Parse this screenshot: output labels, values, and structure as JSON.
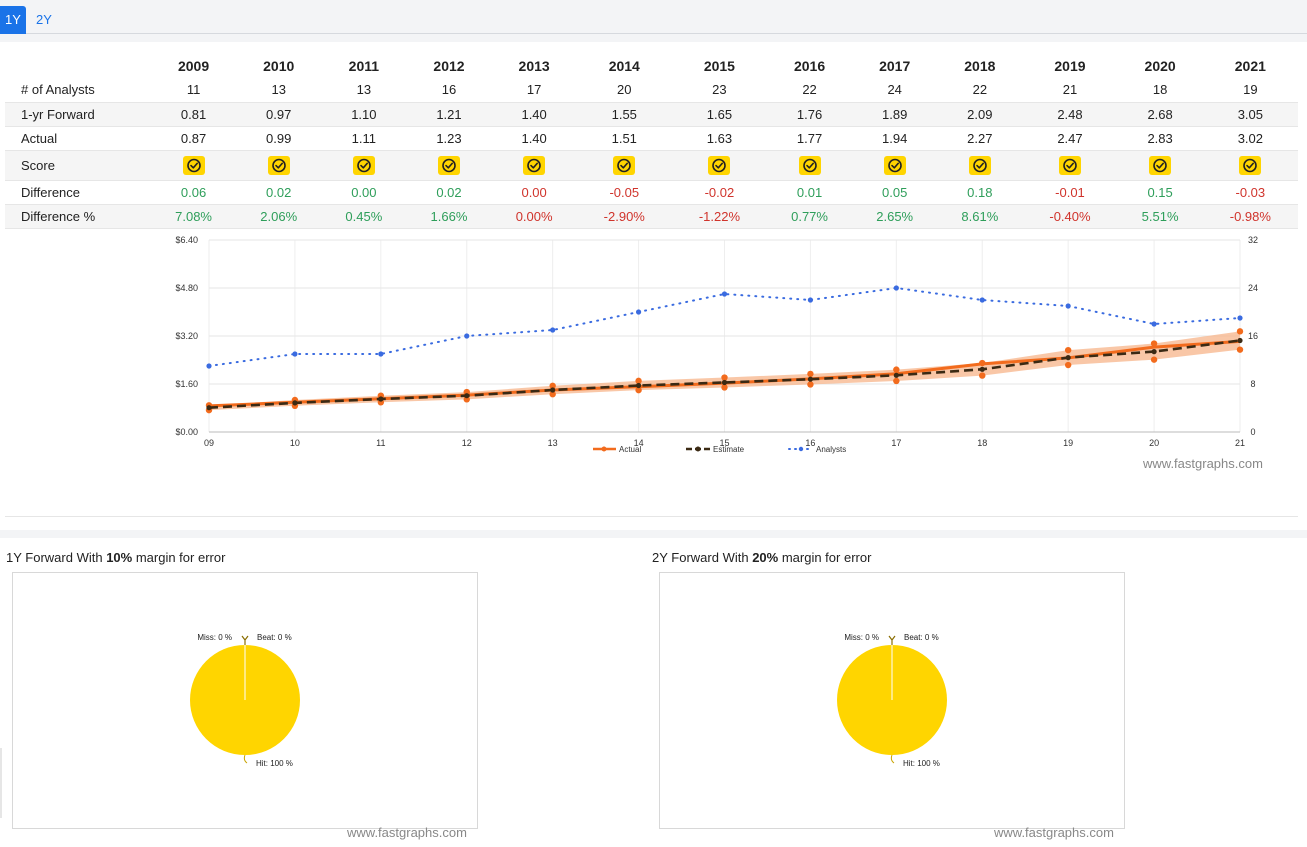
{
  "tabs": [
    {
      "label": "1Y"
    },
    {
      "label": "2Y"
    }
  ],
  "table": {
    "years": [
      "2009",
      "2010",
      "2011",
      "2012",
      "2013",
      "2014",
      "2015",
      "2016",
      "2017",
      "2018",
      "2019",
      "2020",
      "2021"
    ],
    "rows": {
      "analysts": {
        "label": "# of Analysts",
        "values": [
          "11",
          "13",
          "13",
          "16",
          "17",
          "20",
          "23",
          "22",
          "24",
          "22",
          "21",
          "18",
          "19"
        ]
      },
      "forward": {
        "label": "1-yr Forward",
        "values": [
          "0.81",
          "0.97",
          "1.10",
          "1.21",
          "1.40",
          "1.55",
          "1.65",
          "1.76",
          "1.89",
          "2.09",
          "2.48",
          "2.68",
          "3.05"
        ]
      },
      "actual": {
        "label": "Actual",
        "values": [
          "0.87",
          "0.99",
          "1.11",
          "1.23",
          "1.40",
          "1.51",
          "1.63",
          "1.77",
          "1.94",
          "2.27",
          "2.47",
          "2.83",
          "3.02"
        ]
      },
      "score": {
        "label": "Score"
      },
      "difference": {
        "label": "Difference",
        "values": [
          "0.06",
          "0.02",
          "0.00",
          "0.02",
          "0.00",
          "-0.05",
          "-0.02",
          "0.01",
          "0.05",
          "0.18",
          "-0.01",
          "0.15",
          "-0.03"
        ]
      },
      "difference_pct": {
        "label": "Difference %",
        "values": [
          "7.08%",
          "2.06%",
          "0.45%",
          "1.66%",
          "0.00%",
          "-2.90%",
          "-1.22%",
          "0.77%",
          "2.65%",
          "8.61%",
          "-0.40%",
          "5.51%",
          "-0.98%"
        ]
      }
    }
  },
  "colors": {
    "actual": "#f26b1d",
    "estimate": "#3b2a14",
    "analysts": "#3a6be0",
    "band": "#f7b48a",
    "pie": "#ffd500",
    "positive": "#2e9e5a",
    "negative": "#d0342c"
  },
  "chart_data": [
    {
      "type": "line",
      "x": [
        "09",
        "10",
        "11",
        "12",
        "13",
        "14",
        "15",
        "16",
        "17",
        "18",
        "19",
        "20",
        "21"
      ],
      "series": [
        {
          "name": "Actual",
          "axis": "left",
          "values": [
            0.87,
            0.99,
            1.11,
            1.23,
            1.4,
            1.51,
            1.63,
            1.77,
            1.94,
            2.27,
            2.47,
            2.83,
            3.02
          ]
        },
        {
          "name": "Estimate",
          "axis": "left",
          "values": [
            0.81,
            0.97,
            1.1,
            1.21,
            1.4,
            1.55,
            1.65,
            1.76,
            1.89,
            2.09,
            2.48,
            2.68,
            3.05
          ]
        },
        {
          "name": "Analysts",
          "axis": "right",
          "values": [
            11,
            13,
            13,
            16,
            17,
            20,
            23,
            22,
            24,
            22,
            21,
            18,
            19
          ]
        }
      ],
      "y_left_ticks": [
        "$0.00",
        "$1.60",
        "$3.20",
        "$4.80",
        "$6.40"
      ],
      "y_left_range": [
        0,
        6.4
      ],
      "y_right_ticks": [
        "0",
        "8",
        "16",
        "24",
        "32"
      ],
      "y_right_range": [
        0,
        32
      ],
      "legend": [
        "Actual",
        "Estimate",
        "Analysts"
      ],
      "margin_band_pct": 10,
      "watermark": "www.fastgraphs.com"
    },
    {
      "type": "pie",
      "title_prefix": "1Y Forward With ",
      "title_bold": "10%",
      "title_suffix": " margin for error",
      "slices": [
        {
          "label": "Miss",
          "value": 0
        },
        {
          "label": "Beat",
          "value": 0
        },
        {
          "label": "Hit",
          "value": 100
        }
      ],
      "labels": [
        "Miss: 0 %",
        "Beat: 0 %",
        "Hit: 100 %"
      ],
      "watermark": "www.fastgraphs.com"
    },
    {
      "type": "pie",
      "title_prefix": "2Y Forward With ",
      "title_bold": "20%",
      "title_suffix": " margin for error",
      "slices": [
        {
          "label": "Miss",
          "value": 0
        },
        {
          "label": "Beat",
          "value": 0
        },
        {
          "label": "Hit",
          "value": 100
        }
      ],
      "labels": [
        "Miss: 0 %",
        "Beat: 0 %",
        "Hit: 100 %"
      ],
      "watermark": "www.fastgraphs.com"
    }
  ]
}
